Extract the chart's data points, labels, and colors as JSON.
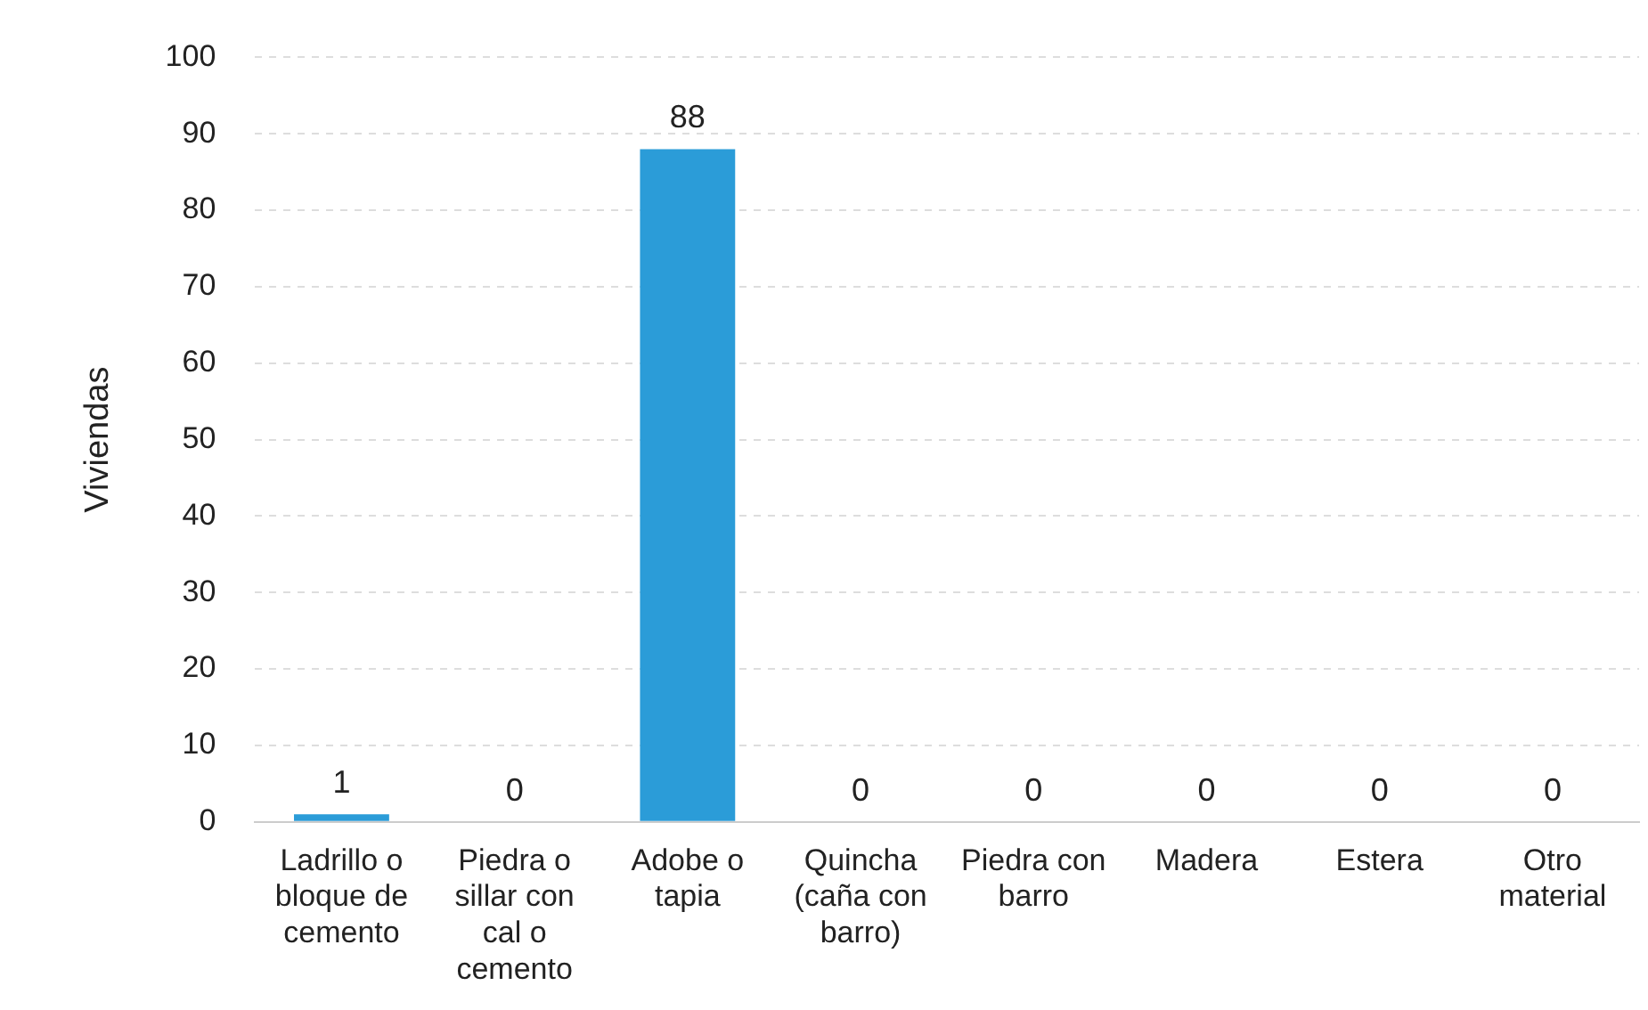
{
  "chart_data": {
    "type": "bar",
    "ylabel": "Viviendas",
    "categories": [
      "Ladrillo o bloque de cemento",
      "Piedra o sillar con cal o cemento",
      "Adobe o tapia",
      "Quincha (caña con barro)",
      "Piedra con barro",
      "Madera",
      "Estera",
      "Otro material"
    ],
    "values": [
      1,
      0,
      88,
      0,
      0,
      0,
      0,
      0
    ],
    "color": "#2b9cd8",
    "ylim": [
      0,
      100
    ],
    "yticks": [
      0,
      10,
      20,
      30,
      40,
      50,
      60,
      70,
      80,
      90,
      100
    ],
    "grid": "y",
    "data_labels": true
  }
}
